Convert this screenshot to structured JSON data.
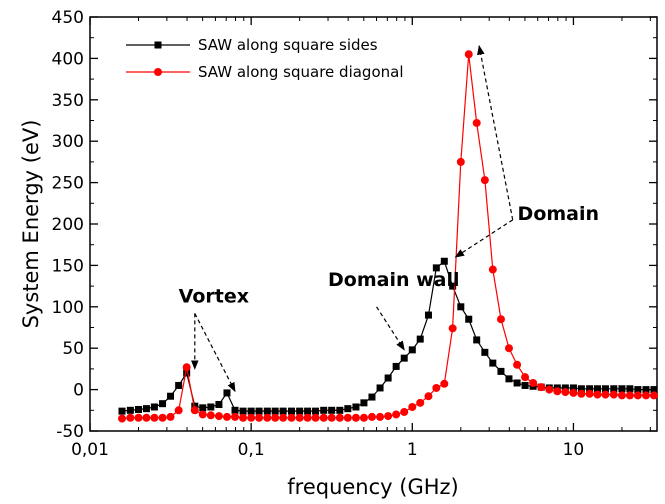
{
  "chart_data": {
    "type": "line",
    "xlabel": "frequency (GHz)",
    "ylabel": "System Energy (eV)",
    "x_scale": "log",
    "xlim": [
      0.01,
      33
    ],
    "ylim": [
      -50,
      450
    ],
    "x_ticks": [
      0.01,
      0.1,
      1,
      10
    ],
    "x_tick_labels": [
      "0,01",
      "0,1",
      "1",
      "10"
    ],
    "y_ticks": [
      -50,
      0,
      50,
      100,
      150,
      200,
      250,
      300,
      350,
      400,
      450
    ],
    "y_tick_labels": [
      "-50",
      "0",
      "50",
      "100",
      "150",
      "200",
      "250",
      "300",
      "350",
      "400",
      "450"
    ],
    "legend_position": "top-left",
    "series": [
      {
        "name": "SAW along square sides",
        "color": "#000000",
        "marker": "square",
        "x": [
          0.0158,
          0.0178,
          0.02,
          0.0224,
          0.0251,
          0.0282,
          0.0316,
          0.0355,
          0.0398,
          0.0447,
          0.0501,
          0.0562,
          0.0631,
          0.0708,
          0.0794,
          0.0891,
          0.1,
          0.112,
          0.126,
          0.141,
          0.158,
          0.178,
          0.2,
          0.224,
          0.251,
          0.282,
          0.316,
          0.355,
          0.398,
          0.447,
          0.501,
          0.562,
          0.631,
          0.708,
          0.794,
          0.891,
          1.0,
          1.12,
          1.26,
          1.41,
          1.58,
          1.78,
          2.0,
          2.24,
          2.51,
          2.82,
          3.16,
          3.55,
          3.98,
          4.47,
          5.01,
          5.62,
          6.31,
          7.08,
          7.94,
          8.91,
          10.0,
          11.2,
          12.6,
          14.1,
          15.8,
          17.8,
          20.0,
          22.4,
          25.1,
          28.2,
          31.6
        ],
        "y": [
          -26,
          -25,
          -24,
          -23,
          -21,
          -17,
          -8,
          5,
          20,
          -20,
          -22,
          -21,
          -18,
          -4,
          -25,
          -26,
          -26,
          -26,
          -26,
          -26,
          -26,
          -26,
          -26,
          -26,
          -26,
          -25,
          -25,
          -25,
          -23,
          -21,
          -16,
          -9,
          2,
          14,
          28,
          38,
          48,
          61,
          90,
          147,
          155,
          125,
          100,
          85,
          60,
          45,
          32,
          22,
          13,
          8,
          5,
          4,
          3,
          2,
          2,
          2,
          2,
          1,
          1,
          1,
          1,
          1,
          1,
          1,
          0,
          0,
          0
        ]
      },
      {
        "name": "SAW along square diagonal",
        "color": "#ff0000",
        "marker": "circle",
        "x": [
          0.0158,
          0.0178,
          0.02,
          0.0224,
          0.0251,
          0.0282,
          0.0316,
          0.0355,
          0.0398,
          0.0447,
          0.0501,
          0.0562,
          0.0631,
          0.0708,
          0.0794,
          0.0891,
          0.1,
          0.112,
          0.126,
          0.141,
          0.158,
          0.178,
          0.2,
          0.224,
          0.251,
          0.282,
          0.316,
          0.355,
          0.398,
          0.447,
          0.501,
          0.562,
          0.631,
          0.708,
          0.794,
          0.891,
          1.0,
          1.12,
          1.26,
          1.41,
          1.58,
          1.78,
          2.0,
          2.24,
          2.51,
          2.82,
          3.16,
          3.55,
          3.98,
          4.47,
          5.01,
          5.62,
          6.31,
          7.08,
          7.94,
          8.91,
          10.0,
          11.2,
          12.6,
          14.1,
          15.8,
          17.8,
          20.0,
          22.4,
          25.1,
          28.2,
          31.6
        ],
        "y": [
          -35,
          -34,
          -34,
          -34,
          -34,
          -34,
          -33,
          -25,
          27,
          -25,
          -30,
          -31,
          -32,
          -33,
          -33,
          -34,
          -34,
          -34,
          -34,
          -34,
          -34,
          -34,
          -34,
          -34,
          -34,
          -34,
          -34,
          -34,
          -34,
          -34,
          -34,
          -33,
          -33,
          -32,
          -30,
          -27,
          -21,
          -16,
          -8,
          2,
          7,
          74,
          275,
          405,
          322,
          253,
          145,
          85,
          50,
          30,
          15,
          8,
          3,
          0,
          -2,
          -3,
          -4,
          -5,
          -5,
          -6,
          -6,
          -6,
          -7,
          -7,
          -7,
          -7,
          -7
        ]
      }
    ],
    "annotations": [
      {
        "text": "Vortex",
        "at": [
          0.0355,
          105
        ],
        "arrows_to": [
          [
            0.0447,
            25
          ],
          [
            0.0794,
            -2
          ]
        ],
        "from": [
          0.0447,
          92
        ]
      },
      {
        "text": "Domain wall",
        "at": [
          0.3,
          125
        ],
        "arrows_to": [
          [
            0.891,
            48
          ]
        ],
        "from": [
          0.6,
          100
        ]
      },
      {
        "text": "Domain",
        "at": [
          4.5,
          205
        ],
        "arrows_to": [
          [
            1.85,
            160
          ],
          [
            2.6,
            415
          ]
        ],
        "from": [
          4.2,
          205
        ]
      }
    ]
  }
}
